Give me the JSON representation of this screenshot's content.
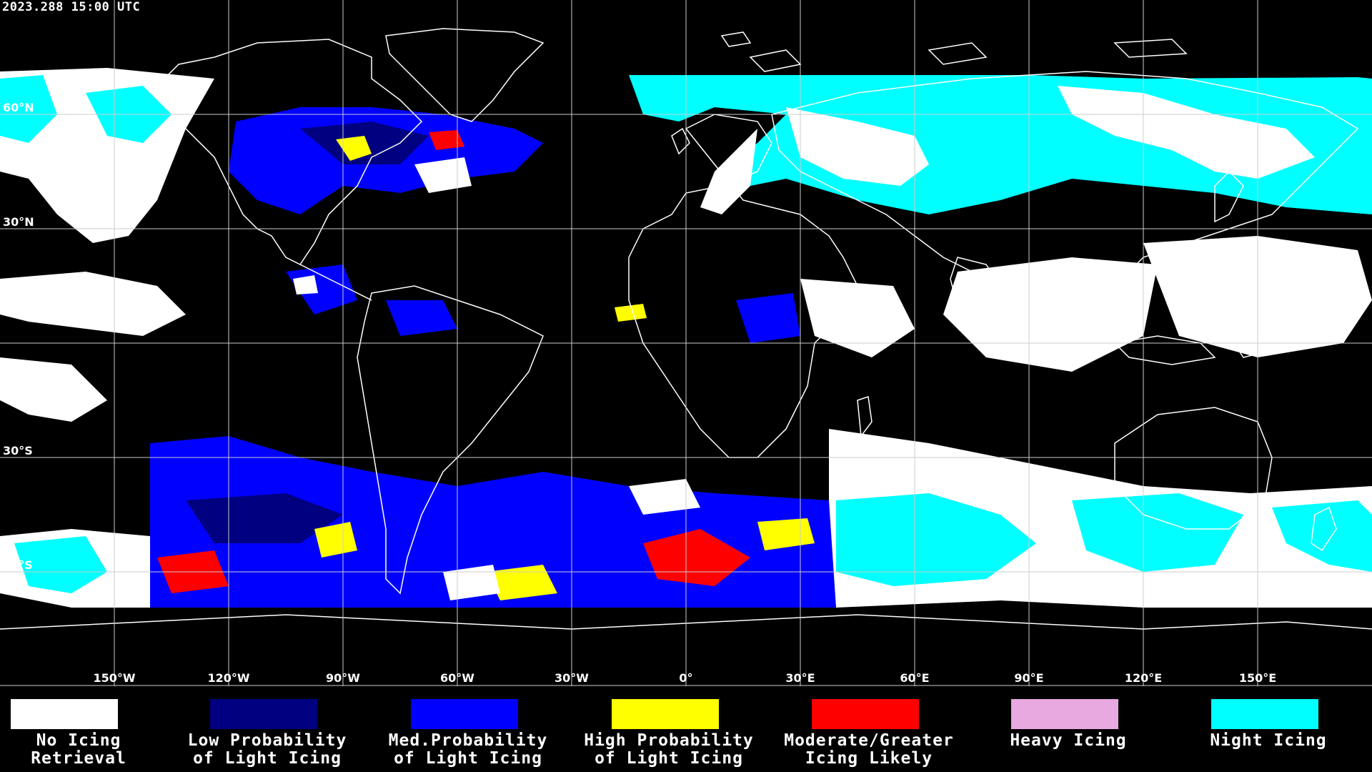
{
  "header": {
    "timestamp": "2023.288 15:00 UTC"
  },
  "map": {
    "projection": "equirectangular",
    "longitude_labels": [
      "150°W",
      "120°W",
      "90°W",
      "60°W",
      "30°W",
      "0°",
      "30°E",
      "60°E",
      "90°E",
      "120°E",
      "150°E"
    ],
    "latitude_labels": [
      "60°N",
      "30°N",
      "30°S",
      "60°S"
    ],
    "grid_color": "#cccccc",
    "coastline_color": "#ffffff"
  },
  "legend": {
    "items": [
      {
        "label": "No Icing\nRetrieval",
        "color": "#ffffff"
      },
      {
        "label": "Low Probability\nof Light Icing",
        "color": "#000080"
      },
      {
        "label": "Med.Probability\nof Light Icing",
        "color": "#0000ff"
      },
      {
        "label": "High Probability\nof Light Icing",
        "color": "#ffff00"
      },
      {
        "label": "Moderate/Greater\nIcing Likely",
        "color": "#ff0000"
      },
      {
        "label": "Heavy Icing",
        "color": "#e8a8e0"
      },
      {
        "label": "Night Icing",
        "color": "#00ffff"
      }
    ]
  }
}
